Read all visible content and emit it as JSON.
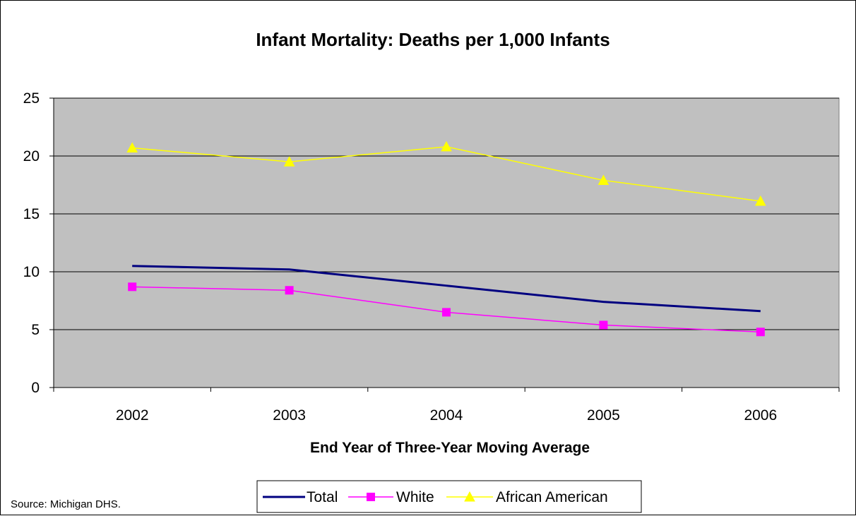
{
  "chart_data": {
    "type": "line",
    "title": "Infant Mortality: Deaths per 1,000 Infants",
    "xlabel": "End Year of Three-Year Moving Average",
    "ylabel": "",
    "categories": [
      "2002",
      "2003",
      "2004",
      "2005",
      "2006"
    ],
    "ylim": [
      0,
      25
    ],
    "yticks": [
      "0",
      "5",
      "10",
      "15",
      "20",
      "25"
    ],
    "grid": true,
    "plot_background": "#C0C0C0",
    "legend_position": "bottom",
    "series": [
      {
        "name": "Total",
        "values": [
          10.5,
          10.2,
          8.8,
          7.4,
          6.6
        ],
        "color": "#000080",
        "marker": "none"
      },
      {
        "name": "White",
        "values": [
          8.7,
          8.4,
          6.5,
          5.4,
          4.8
        ],
        "color": "#FF00FF",
        "marker": "square"
      },
      {
        "name": "African American",
        "values": [
          20.7,
          19.5,
          20.8,
          17.9,
          16.1
        ],
        "color": "#FFFF00",
        "marker": "triangle"
      }
    ]
  },
  "source_note": "Source: Michigan DHS."
}
